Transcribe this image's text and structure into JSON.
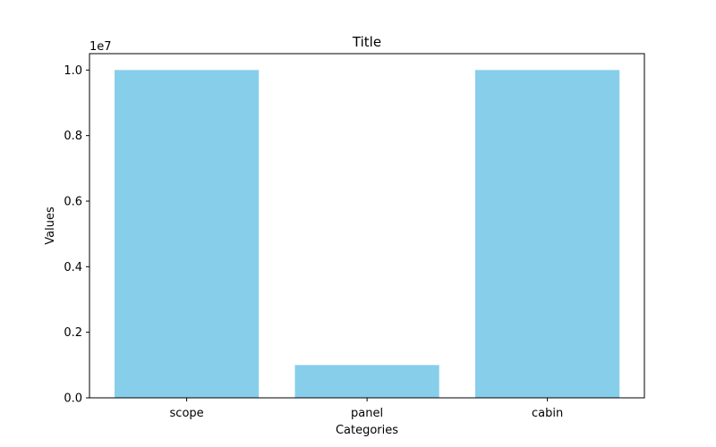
{
  "chart_data": {
    "type": "bar",
    "title": "Title",
    "xlabel": "Categories",
    "ylabel": "Values",
    "categories": [
      "scope",
      "panel",
      "cabin"
    ],
    "values": [
      10000000,
      1000000,
      10000000
    ],
    "ylim": [
      0,
      10500000
    ],
    "y_offset_label": "1e7",
    "y_ticks": [
      {
        "value": 0,
        "label": "0.0"
      },
      {
        "value": 2000000,
        "label": "0.2"
      },
      {
        "value": 4000000,
        "label": "0.4"
      },
      {
        "value": 6000000,
        "label": "0.6"
      },
      {
        "value": 8000000,
        "label": "0.8"
      },
      {
        "value": 10000000,
        "label": "1.0"
      }
    ],
    "bar_color": "#87CEEB",
    "grid": false,
    "legend": "none"
  }
}
